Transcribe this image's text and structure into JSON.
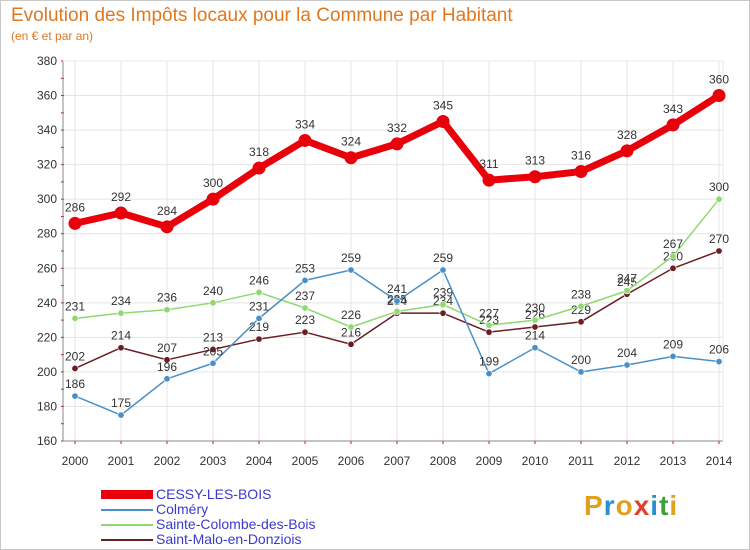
{
  "header": {
    "title": "Evolution des Impôts locaux pour la Commune par Habitant",
    "subtitle": "(en € et par an)"
  },
  "brand": {
    "letters": [
      "P",
      "r",
      "o",
      "x",
      "i",
      "t",
      "i"
    ],
    "colors": [
      "#e0a020",
      "#2a8fd0",
      "#e0a020",
      "#e04030",
      "#2a8fd0",
      "#40a040",
      "#e0a020"
    ]
  },
  "chart_data": {
    "type": "line",
    "title": "Evolution des Impôts locaux pour la Commune par Habitant",
    "subtitle": "(en € et par an)",
    "xlabel": "",
    "ylabel": "",
    "categories": [
      "2000",
      "2001",
      "2002",
      "2003",
      "2004",
      "2005",
      "2006",
      "2007",
      "2008",
      "2009",
      "2010",
      "2011",
      "2012",
      "2013",
      "2014"
    ],
    "ylim": [
      160,
      380
    ],
    "yticks": [
      160,
      180,
      200,
      220,
      240,
      260,
      280,
      300,
      320,
      340,
      360,
      380
    ],
    "grid": true,
    "legend_position": "bottom-left",
    "series": [
      {
        "name": "CESSY-LES-BOIS",
        "color": "#e8000a",
        "values": [
          286,
          292,
          284,
          300,
          318,
          334,
          324,
          332,
          345,
          311,
          313,
          316,
          328,
          343,
          360
        ]
      },
      {
        "name": "Colméry",
        "color": "#4a90c8",
        "values": [
          186,
          175,
          196,
          205,
          231,
          253,
          259,
          241,
          259,
          199,
          214,
          200,
          204,
          209,
          206
        ]
      },
      {
        "name": "Sainte-Colombe-des-Bois",
        "color": "#90d870",
        "values": [
          231,
          234,
          236,
          240,
          246,
          237,
          226,
          235,
          239,
          227,
          230,
          238,
          247,
          267,
          300
        ]
      },
      {
        "name": "Saint-Malo-en-Donziois",
        "color": "#6a1e22",
        "values": [
          202,
          214,
          207,
          213,
          219,
          223,
          216,
          234,
          234,
          223,
          226,
          229,
          245,
          260,
          270
        ]
      }
    ]
  }
}
